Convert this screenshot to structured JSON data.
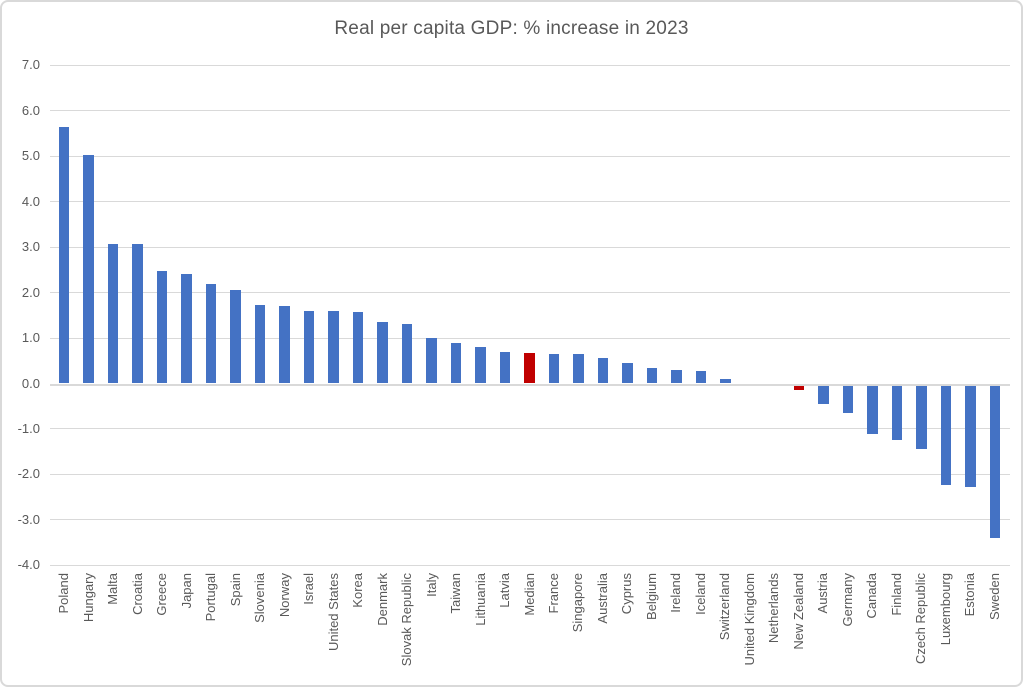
{
  "chart_data": {
    "type": "bar",
    "title": "Real per capita GDP: % increase in 2023",
    "categories": [
      "Poland",
      "Hungary",
      "Malta",
      "Croatia",
      "Greece",
      "Japan",
      "Portugal",
      "Spain",
      "Slovenia",
      "Norway",
      "Israel",
      "United States",
      "Korea",
      "Denmark",
      "Slovak Republic",
      "Italy",
      "Taiwan",
      "Lithuania",
      "Latvia",
      "Median",
      "France",
      "Singapore",
      "Australia",
      "Cyprus",
      "Belgium",
      "Ireland",
      "Iceland",
      "Switzerland",
      "United Kingdom",
      "Netherlands",
      "New Zealand",
      "Austria",
      "Germany",
      "Canada",
      "Finland",
      "Czech Republic",
      "Luxembourg",
      "Estonia",
      "Sweden"
    ],
    "values": [
      5.65,
      5.02,
      3.08,
      3.06,
      2.47,
      2.4,
      2.18,
      2.05,
      1.72,
      1.7,
      1.6,
      1.59,
      1.58,
      1.35,
      1.3,
      1.0,
      0.9,
      0.81,
      0.7,
      0.68,
      0.66,
      0.64,
      0.57,
      0.46,
      0.34,
      0.3,
      0.27,
      0.11,
      0.0,
      0.0,
      -0.11,
      -0.4,
      -0.6,
      -1.06,
      -1.2,
      -1.39,
      -2.2,
      -2.23,
      -3.35
    ],
    "highlighted": [
      "Median",
      "New Zealand"
    ],
    "colors": {
      "bar": "#4472C4",
      "highlight": "#C00000",
      "gridline": "#D9D9D9",
      "text": "#595959",
      "border": "#D9D9D9",
      "background": "#FFFFFF"
    },
    "yticks": [
      7.0,
      6.0,
      5.0,
      4.0,
      3.0,
      2.0,
      1.0,
      0.0,
      -1.0,
      -2.0,
      -3.0,
      -4.0
    ],
    "ylim": [
      -4.0,
      7.0
    ],
    "xlabel": "",
    "ylabel": "",
    "grid": true,
    "legend": false
  }
}
